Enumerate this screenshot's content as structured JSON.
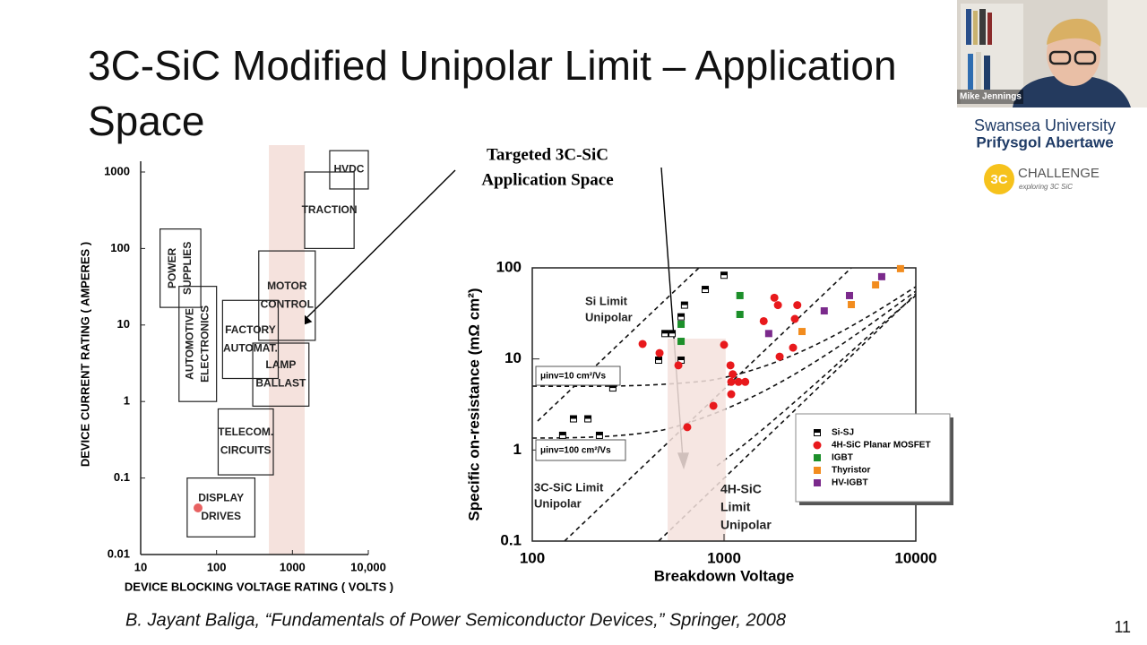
{
  "slide": {
    "title": "3C-SiC Modified Unipolar Limit – Application Space",
    "citation": "B. Jayant Baliga, “Fundamentals of Power Semiconductor Devices,” Springer, 2008",
    "page_number": "11"
  },
  "video": {
    "participant": "Mike Jennings"
  },
  "logos": {
    "university": [
      "Swansea University",
      "Prifysgol Abertawe"
    ],
    "project_mark": "3C",
    "project": "CHALLENGE",
    "project_tagline": "exploring 3C SiC"
  },
  "chart_data": [
    {
      "type": "box",
      "x_label": "DEVICE BLOCKING VOLTAGE RATING  ( VOLTS )",
      "y_label": "DEVICE CURRENT RATING ( AMPERES )",
      "log_x": true,
      "log_y": true,
      "xlim": [
        10,
        10000
      ],
      "xticks": [
        10,
        100,
        1000,
        {
          "value": 10000,
          "label": "10,000"
        }
      ],
      "ylim": [
        0.01,
        1000
      ],
      "yticks": [
        0.01,
        0.1,
        1,
        10,
        100,
        1000
      ],
      "highlight": {
        "x": [
          490,
          1450
        ],
        "color": "#f5e2dd"
      },
      "regions": [
        {
          "lines": [
            "HVDC"
          ],
          "x": [
            3100,
            10000
          ],
          "y": [
            600,
            1900
          ]
        },
        {
          "lines": [
            "TRACTION"
          ],
          "x": [
            1450,
            6500
          ],
          "y": [
            100,
            1000
          ]
        },
        {
          "lines": [
            "POWER",
            "SUPPLIES"
          ],
          "x": [
            18,
            62
          ],
          "y": [
            17,
            180
          ],
          "orientation": "vertical"
        },
        {
          "lines": [
            "AUTOMOTIVE",
            "ELECTRONICS"
          ],
          "x": [
            32,
            100
          ],
          "y": [
            1,
            32
          ],
          "orientation": "vertical"
        },
        {
          "lines": [
            "MOTOR",
            "CONTROL"
          ],
          "x": [
            360,
            2000
          ],
          "y": [
            6.3,
            93
          ]
        },
        {
          "lines": [
            "FACTORY",
            "AUTOMAT."
          ],
          "x": [
            120,
            650
          ],
          "y": [
            2,
            21
          ]
        },
        {
          "lines": [
            "LAMP",
            "BALLAST"
          ],
          "x": [
            300,
            1650
          ],
          "y": [
            0.87,
            5.8
          ]
        },
        {
          "lines": [
            "TELECOM.",
            "CIRCUITS"
          ],
          "x": [
            105,
            560
          ],
          "y": [
            0.11,
            0.8
          ]
        },
        {
          "lines": [
            "DISPLAY",
            "DRIVES"
          ],
          "x": [
            41,
            320
          ],
          "y": [
            0.017,
            0.1
          ]
        }
      ]
    },
    {
      "type": "scatter",
      "x_label": "Breakdown Voltage",
      "y_label": "Specific on-resistance (mΩ cm²)",
      "log_x": true,
      "log_y": true,
      "xlim": [
        100,
        10000
      ],
      "xticks": [
        100,
        1000,
        10000
      ],
      "ylim": [
        0.1,
        100
      ],
      "yticks": [
        0.1,
        1,
        10,
        100
      ],
      "legend": "lower-right",
      "highlight": {
        "x": [
          508,
          1020
        ],
        "y": [
          0.1,
          16.7
        ],
        "color": "#f5e2dd"
      },
      "series": [
        {
          "name": "Si-SJ",
          "color": "#000000",
          "marker": "half-square",
          "x": [
            144,
            164,
            195,
            224,
            263,
            456,
            492,
            536,
            597,
            597,
            622,
            798,
            1000
          ],
          "values": [
            1.45,
            2.2,
            2.2,
            1.45,
            4.8,
            9.7,
            19,
            19,
            29,
            9.7,
            39,
            58,
            83
          ]
        },
        {
          "name": "4H-SiC Planar MOSFET",
          "color": "#e8191c",
          "marker": "circle",
          "x": [
            376,
            461,
            578,
            643,
            880,
            1000,
            1080,
            1110,
            1090,
            1190,
            1290,
            1090,
            1610,
            1830,
            1910,
            1950,
            2290,
            2340,
            2410
          ],
          "values": [
            14.6,
            11.6,
            8.5,
            1.78,
            3.06,
            14.3,
            8.5,
            6.8,
            5.6,
            5.6,
            5.6,
            4.1,
            26,
            47,
            39,
            10.6,
            13.3,
            27.5,
            39
          ]
        },
        {
          "name": "IGBT",
          "color": "#1c8f2a",
          "marker": "square",
          "x": [
            597,
            597,
            1210,
            1210
          ],
          "values": [
            24,
            15.6,
            49.6,
            30.8
          ]
        },
        {
          "name": "Thyristor",
          "color": "#f28c1e",
          "marker": "square",
          "x": [
            2550,
            4610,
            6170,
            8320
          ],
          "values": [
            20,
            39.5,
            65,
            98
          ]
        },
        {
          "name": "HV-IGBT",
          "color": "#7b2a8c",
          "marker": "square",
          "x": [
            1710,
            3330,
            4510,
            6640
          ],
          "values": [
            19,
            33.7,
            49.6,
            80
          ]
        }
      ],
      "annotations": [
        {
          "lines": [
            "Targeted 3C-SiC",
            "Application Space"
          ]
        },
        {
          "lines": [
            "Si Limit",
            "Unipolar"
          ]
        },
        {
          "lines": [
            "μinv=10 cm²/Vs"
          ]
        },
        {
          "lines": [
            "μinv=100 cm²/Vs"
          ]
        },
        {
          "lines": [
            "3C-SiC Limit",
            "Unipolar"
          ]
        },
        {
          "lines": [
            "4H-SiC",
            "Limit",
            "Unipolar"
          ]
        }
      ]
    }
  ]
}
